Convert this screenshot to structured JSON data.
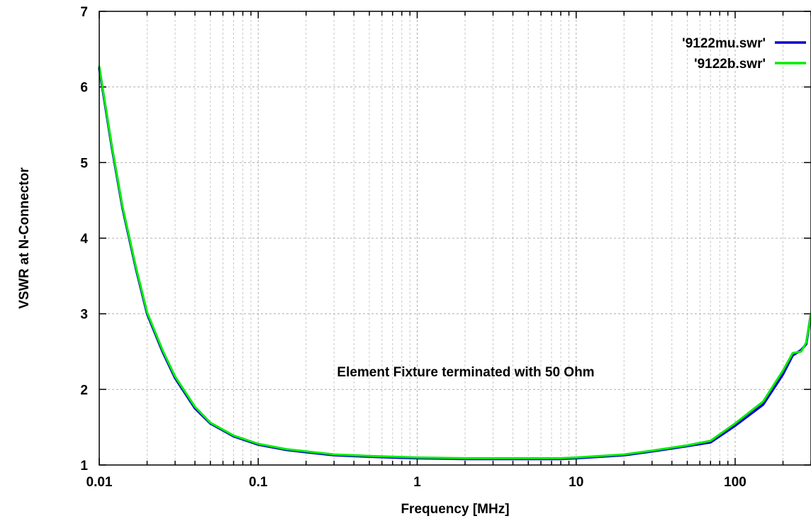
{
  "chart_data": {
    "type": "line",
    "xlabel": "Frequency [MHz]",
    "ylabel": "VSWR at N-Connector",
    "x_scale": "log",
    "xlim": [
      0.01,
      300
    ],
    "ylim": [
      1,
      7
    ],
    "grid": true,
    "legend_position": "top-right",
    "x_tick_labels": [
      "0.01",
      "0.1",
      "1",
      "10",
      "100"
    ],
    "x_tick_values": [
      0.01,
      0.1,
      1,
      10,
      100
    ],
    "y_tick_labels": [
      "1",
      "2",
      "3",
      "4",
      "5",
      "6",
      "7"
    ],
    "y_tick_values": [
      1,
      2,
      3,
      4,
      5,
      6,
      7
    ],
    "annotation": "Element Fixture terminated with 50 Ohm",
    "series": [
      {
        "name": "'9122mu.swr'",
        "color": "#0000cc",
        "x": [
          0.01,
          0.012,
          0.014,
          0.017,
          0.02,
          0.025,
          0.03,
          0.04,
          0.05,
          0.07,
          0.1,
          0.15,
          0.2,
          0.3,
          0.5,
          0.7,
          1,
          2,
          3,
          5,
          8,
          10,
          20,
          30,
          50,
          70,
          100,
          150,
          200,
          230,
          260,
          280,
          300
        ],
        "y": [
          6.25,
          5.2,
          4.4,
          3.6,
          3.0,
          2.5,
          2.15,
          1.75,
          1.55,
          1.38,
          1.27,
          1.2,
          1.17,
          1.13,
          1.11,
          1.1,
          1.09,
          1.08,
          1.08,
          1.08,
          1.08,
          1.09,
          1.13,
          1.18,
          1.25,
          1.3,
          1.52,
          1.8,
          2.2,
          2.45,
          2.52,
          2.6,
          3.0
        ]
      },
      {
        "name": "'9122b.swr'",
        "color": "#00ee00",
        "x": [
          0.01,
          0.012,
          0.014,
          0.017,
          0.02,
          0.025,
          0.03,
          0.04,
          0.05,
          0.07,
          0.1,
          0.15,
          0.2,
          0.3,
          0.5,
          0.7,
          1,
          2,
          3,
          5,
          8,
          10,
          20,
          30,
          50,
          70,
          100,
          150,
          200,
          230,
          260,
          280,
          300
        ],
        "y": [
          6.27,
          5.22,
          4.42,
          3.62,
          3.02,
          2.52,
          2.17,
          1.77,
          1.56,
          1.39,
          1.28,
          1.21,
          1.18,
          1.14,
          1.12,
          1.11,
          1.1,
          1.09,
          1.09,
          1.09,
          1.09,
          1.1,
          1.14,
          1.19,
          1.26,
          1.32,
          1.55,
          1.84,
          2.25,
          2.48,
          2.5,
          2.62,
          3.0
        ]
      }
    ]
  }
}
